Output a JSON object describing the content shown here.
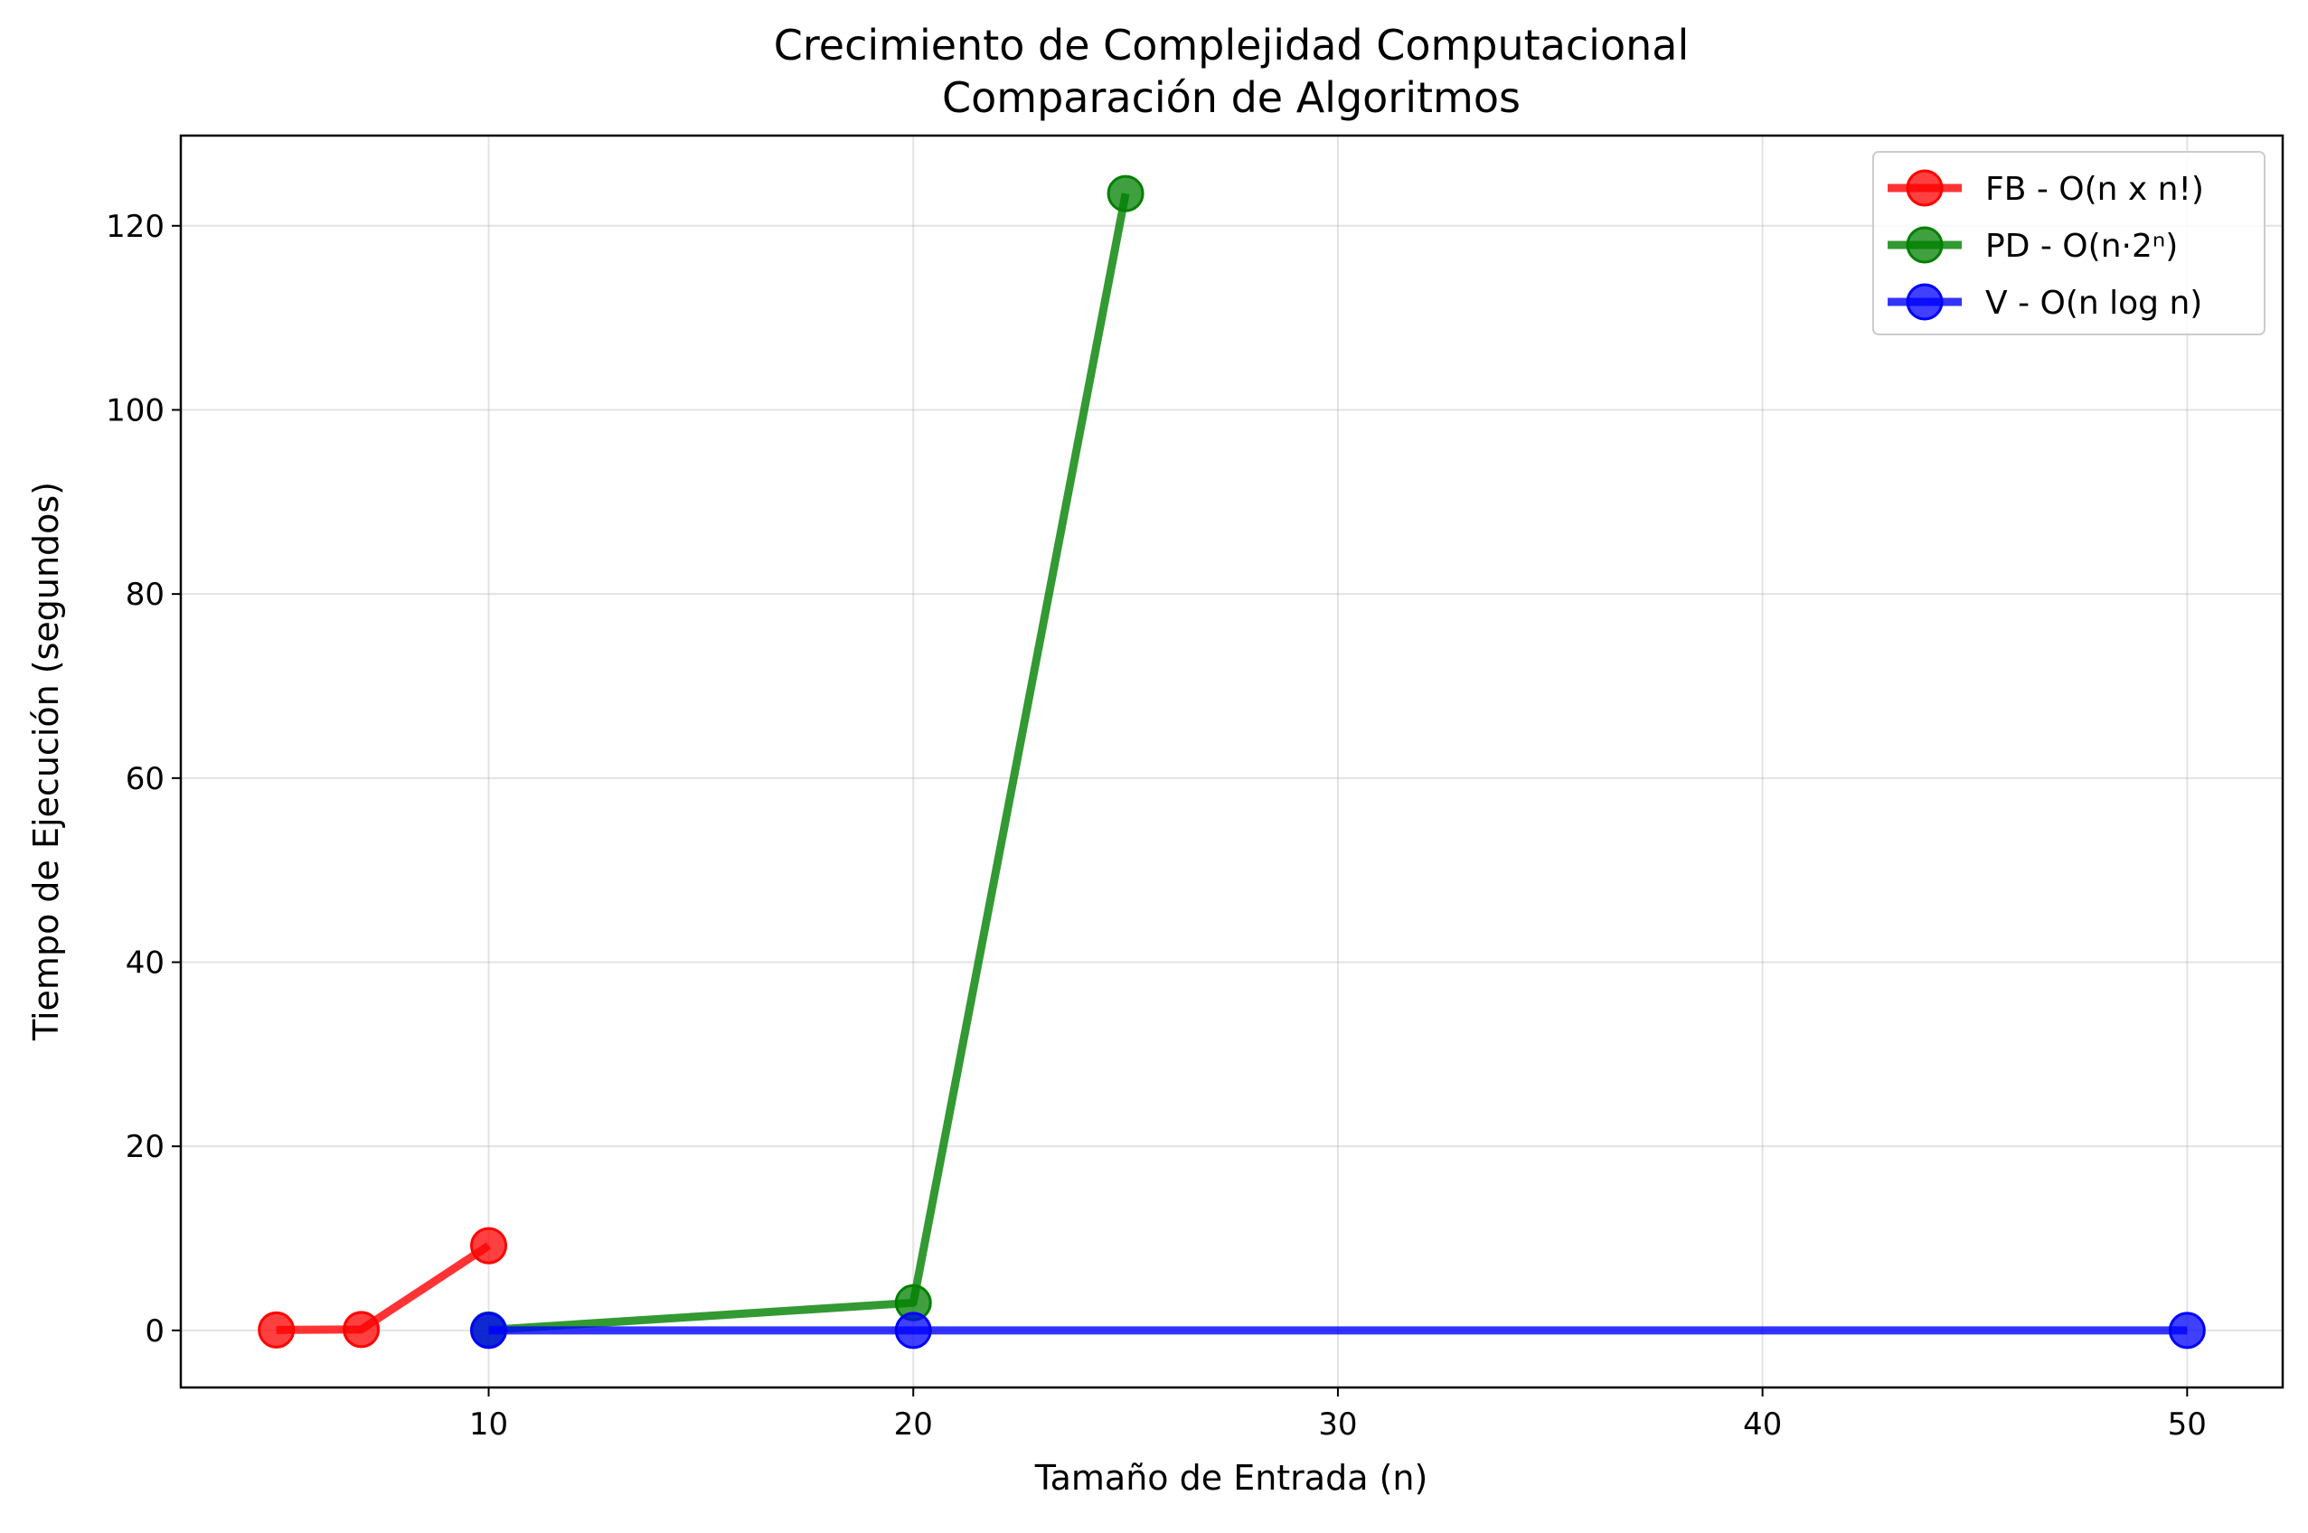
{
  "chart_data": {
    "type": "line",
    "title": "Crecimiento de Complejidad Computacional",
    "subtitle": "Comparación de Algoritmos",
    "xlabel": "Tamaño de Entrada (n)",
    "ylabel": "Tiempo de Ejecución (segundos)",
    "xlim": [
      2.75,
      52.25
    ],
    "ylim": [
      -6.2,
      129.8
    ],
    "xticks": [
      10,
      20,
      30,
      40,
      50
    ],
    "yticks": [
      0,
      20,
      40,
      60,
      80,
      100,
      120
    ],
    "grid": true,
    "legend_position": "top-right",
    "series": [
      {
        "name": "FB - O(n x n!)",
        "color": "#ff0000",
        "x": [
          5,
          7,
          10
        ],
        "y": [
          0.05,
          0.1,
          9.2
        ]
      },
      {
        "name": "PD - O(n·2ⁿ)",
        "color": "#008000",
        "x": [
          10,
          20,
          25
        ],
        "y": [
          0.05,
          3.0,
          123.5
        ]
      },
      {
        "name": "V - O(n log n)",
        "color": "#0000ff",
        "x": [
          10,
          20,
          50
        ],
        "y": [
          0.0,
          0.0,
          0.0
        ]
      }
    ]
  }
}
